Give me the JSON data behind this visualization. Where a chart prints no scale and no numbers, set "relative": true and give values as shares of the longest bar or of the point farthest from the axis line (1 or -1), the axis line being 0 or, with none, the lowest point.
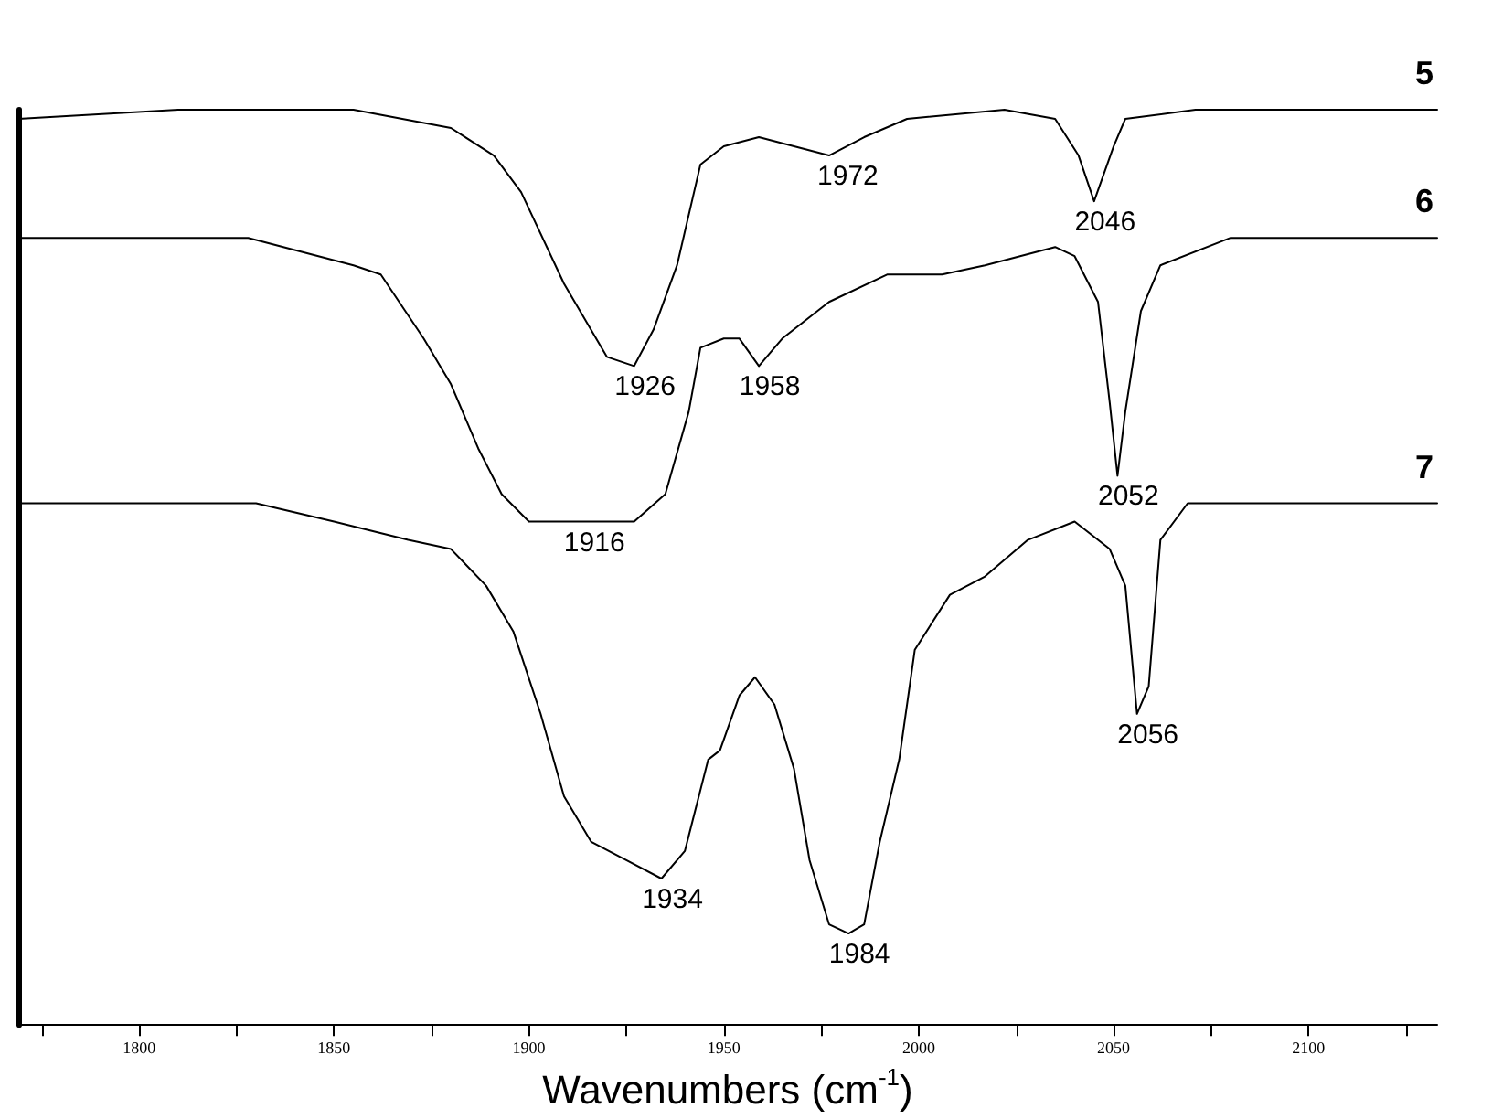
{
  "chart_data": {
    "type": "line",
    "relative": true,
    "xlabel": "Wavenumbers (cm$^{-1}$)",
    "xlim": [
      1769,
      2133
    ],
    "xticks": [
      {
        "value": 1775,
        "label": null
      },
      1800,
      {
        "value": 1825,
        "label": null
      },
      1850,
      {
        "value": 1875,
        "label": null
      },
      1900,
      {
        "value": 1925,
        "label": null
      },
      1950,
      {
        "value": 1975,
        "label": null
      },
      2000,
      {
        "value": 2025,
        "label": null
      },
      2050,
      {
        "value": 2075,
        "label": null
      },
      2100,
      {
        "value": 2125,
        "label": null
      }
    ],
    "grid": false,
    "legend": false,
    "marker": "none",
    "line_style": "solid",
    "series": [
      {
        "name": "5",
        "color": "#000000",
        "x": [
          1769,
          1810,
          1855,
          1880,
          1891,
          1898,
          1909,
          1920,
          1927,
          1932,
          1938,
          1944,
          1950,
          1959,
          1977,
          1986,
          1997,
          2022,
          2035,
          2041,
          2045,
          2050,
          2053,
          2071,
          2133
        ],
        "values": [
          0.99,
          1.0,
          1.0,
          0.98,
          0.95,
          0.91,
          0.81,
          0.73,
          0.72,
          0.76,
          0.83,
          0.94,
          0.96,
          0.97,
          0.95,
          0.97,
          0.99,
          1.0,
          0.99,
          0.95,
          0.9,
          0.96,
          0.99,
          1.0,
          1.0
        ]
      },
      {
        "name": "6",
        "color": "#000000",
        "x": [
          1769,
          1828,
          1855,
          1862,
          1873,
          1880,
          1887,
          1893,
          1900,
          1914,
          1927,
          1935,
          1941,
          1944,
          1950,
          1954,
          1959,
          1965,
          1977,
          1992,
          2006,
          2017,
          2035,
          2040,
          2046,
          2049,
          2051,
          2053,
          2057,
          2062,
          2080,
          2133
        ],
        "values": [
          0.86,
          0.86,
          0.83,
          0.82,
          0.75,
          0.7,
          0.63,
          0.58,
          0.55,
          0.55,
          0.55,
          0.58,
          0.67,
          0.74,
          0.75,
          0.75,
          0.72,
          0.75,
          0.79,
          0.82,
          0.82,
          0.83,
          0.85,
          0.84,
          0.79,
          0.68,
          0.6,
          0.67,
          0.78,
          0.83,
          0.86,
          0.86
        ]
      },
      {
        "name": "7",
        "color": "#000000",
        "x": [
          1769,
          1801,
          1830,
          1850,
          1869,
          1880,
          1889,
          1896,
          1903,
          1909,
          1916,
          1925,
          1934,
          1940,
          1946,
          1949,
          1954,
          1958,
          1963,
          1968,
          1972,
          1977,
          1982,
          1986,
          1990,
          1995,
          1999,
          2008,
          2017,
          2028,
          2040,
          2049,
          2053,
          2056,
          2059,
          2062,
          2069,
          2089,
          2133
        ],
        "values": [
          0.57,
          0.57,
          0.57,
          0.55,
          0.53,
          0.52,
          0.48,
          0.43,
          0.34,
          0.25,
          0.2,
          0.18,
          0.16,
          0.19,
          0.29,
          0.3,
          0.36,
          0.38,
          0.35,
          0.28,
          0.18,
          0.11,
          0.1,
          0.11,
          0.2,
          0.29,
          0.41,
          0.47,
          0.49,
          0.53,
          0.55,
          0.52,
          0.48,
          0.34,
          0.37,
          0.53,
          0.57,
          0.57,
          0.57
        ]
      }
    ],
    "annotations": [
      {
        "text": "1972",
        "x": 1979,
        "y": 0.95
      },
      {
        "text": "2046",
        "x": 2045,
        "y": 0.9
      },
      {
        "text": "1926",
        "x": 1927,
        "y": 0.72
      },
      {
        "text": "1958",
        "x": 1959,
        "y": 0.72
      },
      {
        "text": "2052",
        "x": 2051,
        "y": 0.6
      },
      {
        "text": "1916",
        "x": 1914,
        "y": 0.55
      },
      {
        "text": "2056",
        "x": 2056,
        "y": 0.34
      },
      {
        "text": "1934",
        "x": 1934,
        "y": 0.16
      },
      {
        "text": "1984",
        "x": 1982,
        "y": 0.1
      }
    ]
  }
}
